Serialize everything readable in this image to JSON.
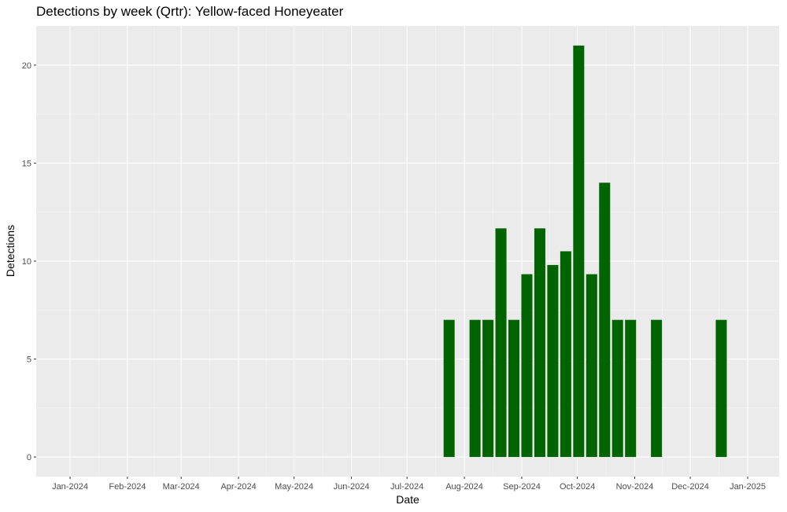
{
  "chart_data": {
    "type": "bar",
    "title": "Detections by week (Qrtr): Yellow-faced Honeyeater",
    "xlabel": "Date",
    "ylabel": "Detections",
    "x_ticks": [
      "Jan-2024",
      "Feb-2024",
      "Mar-2024",
      "Apr-2024",
      "May-2024",
      "Jun-2024",
      "Jul-2024",
      "Aug-2024",
      "Sep-2024",
      "Oct-2024",
      "Nov-2024",
      "Dec-2024",
      "Jan-2025"
    ],
    "y_ticks": [
      0,
      5,
      10,
      15,
      20
    ],
    "ylim": [
      -1,
      22
    ],
    "grid": true,
    "bar_color": "#006400",
    "panel_background": "#ebebeb",
    "points": [
      {
        "week": "2024-07-22",
        "value": 7
      },
      {
        "week": "2024-08-05",
        "value": 7
      },
      {
        "week": "2024-08-12",
        "value": 7
      },
      {
        "week": "2024-08-19",
        "value": 11.67
      },
      {
        "week": "2024-08-26",
        "value": 7
      },
      {
        "week": "2024-09-02",
        "value": 9.33
      },
      {
        "week": "2024-09-09",
        "value": 11.67
      },
      {
        "week": "2024-09-16",
        "value": 9.8
      },
      {
        "week": "2024-09-23",
        "value": 10.5
      },
      {
        "week": "2024-09-30",
        "value": 21
      },
      {
        "week": "2024-10-07",
        "value": 9.33
      },
      {
        "week": "2024-10-14",
        "value": 14
      },
      {
        "week": "2024-10-21",
        "value": 7
      },
      {
        "week": "2024-10-28",
        "value": 7
      },
      {
        "week": "2024-11-11",
        "value": 7
      },
      {
        "week": "2024-12-16",
        "value": 7
      }
    ]
  }
}
